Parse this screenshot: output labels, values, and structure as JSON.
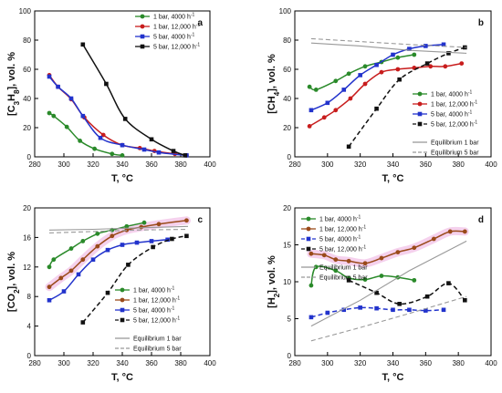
{
  "chart_data": [
    {
      "id": "a",
      "type": "scatter",
      "panel_label": "a",
      "xlabel": "T, °C",
      "ylabel_main": "[C",
      "ylabel_sub1": "3",
      "ylabel_mid": "H",
      "ylabel_sub2": "8",
      "ylabel_tail": "], vol. %",
      "xlim": [
        280,
        400
      ],
      "ylim": [
        0,
        100
      ],
      "xticks": [
        "280",
        "300",
        "320",
        "340",
        "360",
        "380",
        "400"
      ],
      "yticks": [
        "0",
        "20",
        "40",
        "60",
        "80",
        "100"
      ],
      "legend_position": "top-right",
      "series": [
        {
          "name": "1 bar, 4000 h",
          "sup": "-1",
          "color": "#2a8a2a",
          "marker": "circle",
          "style": "solid",
          "points": [
            [
              290,
              30
            ],
            [
              293,
              28
            ],
            [
              302,
              20.5
            ],
            [
              311,
              11
            ],
            [
              321,
              5.5
            ],
            [
              333,
              2
            ],
            [
              340,
              1
            ]
          ]
        },
        {
          "name": "1 bar, 12,000 h",
          "sup": "-1",
          "color": "#c81d1d",
          "marker": "circle",
          "style": "solid",
          "points": [
            [
              290,
              56
            ],
            [
              296,
              48
            ],
            [
              305,
              39.5
            ],
            [
              314,
              27
            ],
            [
              327,
              15
            ],
            [
              340,
              8
            ],
            [
              352,
              6
            ],
            [
              362,
              4
            ],
            [
              376,
              2
            ],
            [
              384,
              1
            ]
          ]
        },
        {
          "name": "5 bar, 4000 h",
          "sup": "-1",
          "color": "#2233cc",
          "marker": "square",
          "style": "solid",
          "points": [
            [
              290,
              55
            ],
            [
              296,
              48
            ],
            [
              305,
              40
            ],
            [
              313,
              28
            ],
            [
              325,
              13
            ],
            [
              340,
              8
            ],
            [
              355,
              5
            ],
            [
              365,
              3
            ],
            [
              384,
              1
            ]
          ]
        },
        {
          "name": "5 bar, 12,000 h",
          "sup": "-1",
          "color": "#111111",
          "marker": "square",
          "style": "solid",
          "points": [
            [
              313,
              77
            ],
            [
              329,
              50
            ],
            [
              342,
              26
            ],
            [
              360,
              12
            ],
            [
              375,
              4
            ],
            [
              383,
              1
            ]
          ]
        }
      ]
    },
    {
      "id": "b",
      "type": "scatter",
      "panel_label": "b",
      "xlabel": "T, °C",
      "ylabel_main": "[CH",
      "ylabel_sub1": "4",
      "ylabel_tail": "], vol. %",
      "xlim": [
        280,
        400
      ],
      "ylim": [
        0,
        100
      ],
      "xticks": [
        "280",
        "300",
        "320",
        "340",
        "360",
        "380",
        "400"
      ],
      "yticks": [
        "0",
        "20",
        "40",
        "60",
        "80",
        "100"
      ],
      "legend_position": "center-right",
      "series": [
        {
          "name": "1 bar, 4000 h",
          "sup": "-1",
          "color": "#2a8a2a",
          "marker": "circle",
          "style": "solid",
          "points": [
            [
              289,
              48
            ],
            [
              293,
              46
            ],
            [
              305,
              52
            ],
            [
              313,
              57
            ],
            [
              323,
              62
            ],
            [
              333,
              65
            ],
            [
              343,
              68
            ],
            [
              353,
              70
            ]
          ]
        },
        {
          "name": "1 bar, 12,000 h",
          "sup": "-1",
          "color": "#c81d1d",
          "marker": "circle",
          "style": "solid",
          "points": [
            [
              289,
              21
            ],
            [
              298,
              27
            ],
            [
              305,
              32
            ],
            [
              314,
              40
            ],
            [
              323,
              50
            ],
            [
              333,
              58
            ],
            [
              343,
              60
            ],
            [
              353,
              61
            ],
            [
              363,
              62
            ],
            [
              372,
              62
            ],
            [
              382,
              64
            ]
          ]
        },
        {
          "name": "5 bar, 4000 h",
          "sup": "-1",
          "color": "#2233cc",
          "marker": "square",
          "style": "solid",
          "points": [
            [
              290,
              32
            ],
            [
              300,
              37
            ],
            [
              310,
              46
            ],
            [
              320,
              56
            ],
            [
              330,
              63
            ],
            [
              340,
              70
            ],
            [
              350,
              74
            ],
            [
              360,
              76
            ],
            [
              371,
              77
            ]
          ]
        },
        {
          "name": "5 bar, 12,000 h",
          "sup": "-1",
          "color": "#111111",
          "marker": "square",
          "style": "dashed",
          "points": [
            [
              313,
              7
            ],
            [
              330,
              33
            ],
            [
              344,
              53
            ],
            [
              361,
              64
            ],
            [
              374,
              71
            ],
            [
              384,
              75
            ]
          ]
        },
        {
          "name": "Equilibrium 1 bar",
          "color": "#999999",
          "marker": "none",
          "style": "solid",
          "points": [
            [
              290,
              78
            ],
            [
              320,
              76
            ],
            [
              350,
              73
            ],
            [
              385,
              71
            ]
          ]
        },
        {
          "name": "Equilibrium 5 bar",
          "color": "#999999",
          "marker": "none",
          "style": "dashed",
          "points": [
            [
              290,
              81
            ],
            [
              320,
              79
            ],
            [
              350,
              77
            ],
            [
              385,
              75
            ]
          ]
        }
      ]
    },
    {
      "id": "c",
      "type": "scatter",
      "panel_label": "c",
      "xlabel": "T, °C",
      "ylabel_main": "[CO",
      "ylabel_sub1": "2",
      "ylabel_tail": "], vol. %",
      "xlim": [
        280,
        400
      ],
      "ylim": [
        0,
        20
      ],
      "xticks": [
        "280",
        "300",
        "320",
        "340",
        "360",
        "380",
        "400"
      ],
      "yticks": [
        "0",
        "4",
        "8",
        "12",
        "16",
        "20"
      ],
      "legend_position": "center-right",
      "series": [
        {
          "name": "1 bar, 4000 h",
          "sup": "-1",
          "color": "#2a8a2a",
          "marker": "circle",
          "style": "solid",
          "points": [
            [
              290,
              12
            ],
            [
              293,
              13
            ],
            [
              305,
              14.5
            ],
            [
              313,
              15.5
            ],
            [
              323,
              16.5
            ],
            [
              333,
              17
            ],
            [
              343,
              17.5
            ],
            [
              355,
              18
            ]
          ]
        },
        {
          "name": "1 bar, 12,000 h",
          "sup": "-1",
          "color": "#9a4a1a",
          "marker": "circle",
          "style": "solid",
          "points": [
            [
              290,
              9.3
            ],
            [
              298,
              10.5
            ],
            [
              305,
              11.5
            ],
            [
              313,
              13
            ],
            [
              323,
              14.8
            ],
            [
              333,
              16.2
            ],
            [
              343,
              17
            ],
            [
              353,
              17.4
            ],
            [
              365,
              17.8
            ],
            [
              384,
              18.3
            ]
          ]
        },
        {
          "name": "5 bar, 4000 h",
          "sup": "-1",
          "color": "#2233cc",
          "marker": "square",
          "style": "solid",
          "points": [
            [
              290,
              7.5
            ],
            [
              300,
              8.7
            ],
            [
              310,
              11
            ],
            [
              320,
              13
            ],
            [
              330,
              14.3
            ],
            [
              340,
              15
            ],
            [
              350,
              15.3
            ],
            [
              360,
              15.5
            ],
            [
              371,
              15.7
            ]
          ]
        },
        {
          "name": "5 bar, 12,000 h",
          "sup": "-1",
          "color": "#111111",
          "marker": "square",
          "style": "dashed",
          "points": [
            [
              313,
              4.5
            ],
            [
              330,
              8.5
            ],
            [
              344,
              12.3
            ],
            [
              361,
              14.7
            ],
            [
              374,
              15.8
            ],
            [
              384,
              16.2
            ]
          ]
        },
        {
          "name": "Equilibrium 1 bar",
          "color": "#999999",
          "marker": "none",
          "style": "solid",
          "points": [
            [
              290,
              17
            ],
            [
              320,
              17.1
            ],
            [
              350,
              17.3
            ],
            [
              385,
              17.5
            ]
          ]
        },
        {
          "name": "Equilibrium 5 bar",
          "color": "#999999",
          "marker": "none",
          "style": "dashed",
          "points": [
            [
              290,
              16.6
            ],
            [
              320,
              16.8
            ],
            [
              350,
              17
            ],
            [
              385,
              17.1
            ]
          ]
        }
      ]
    },
    {
      "id": "d",
      "type": "scatter",
      "panel_label": "d",
      "xlabel": "T, °C",
      "ylabel_main": "[H",
      "ylabel_sub1": "2",
      "ylabel_tail": "], vol. %",
      "xlim": [
        280,
        400
      ],
      "ylim": [
        0,
        20
      ],
      "xticks": [
        "280",
        "300",
        "320",
        "340",
        "360",
        "380",
        "400"
      ],
      "yticks": [
        "0",
        "5",
        "10",
        "15",
        "20"
      ],
      "legend_position": "top-left",
      "series": [
        {
          "name": "1 bar, 4000 h",
          "sup": "-1",
          "color": "#2a8a2a",
          "marker": "circle",
          "style": "solid",
          "points": [
            [
              290,
              9.5
            ],
            [
              293,
              12
            ],
            [
              305,
              11.5
            ],
            [
              313,
              10.5
            ],
            [
              323,
              10.3
            ],
            [
              333,
              10.8
            ],
            [
              343,
              10.6
            ],
            [
              353,
              10.2
            ]
          ]
        },
        {
          "name": "1 bar, 12,000 h",
          "sup": "-1",
          "color": "#9a4a1a",
          "marker": "circle",
          "style": "solid",
          "points": [
            [
              290,
              13.8
            ],
            [
              298,
              13.6
            ],
            [
              305,
              13
            ],
            [
              313,
              12.8
            ],
            [
              323,
              12.5
            ],
            [
              333,
              13.2
            ],
            [
              343,
              14
            ],
            [
              353,
              14.6
            ],
            [
              365,
              15.8
            ],
            [
              375,
              16.8
            ],
            [
              384,
              16.8
            ]
          ]
        },
        {
          "name": "5 bar, 4000 h",
          "sup": "-1",
          "color": "#2233cc",
          "marker": "square",
          "style": "dashed",
          "points": [
            [
              290,
              5.2
            ],
            [
              300,
              5.8
            ],
            [
              310,
              6.2
            ],
            [
              320,
              6.5
            ],
            [
              330,
              6.4
            ],
            [
              340,
              6.2
            ],
            [
              350,
              6.2
            ],
            [
              360,
              6.1
            ],
            [
              371,
              6.2
            ]
          ]
        },
        {
          "name": "5 bar, 12,000 h",
          "sup": "-1",
          "color": "#111111",
          "marker": "square",
          "style": "dashed",
          "points": [
            [
              313,
              10.2
            ],
            [
              330,
              8.5
            ],
            [
              344,
              7
            ],
            [
              361,
              8
            ],
            [
              374,
              9.8
            ],
            [
              384,
              7.5
            ]
          ]
        },
        {
          "name": "Equilibrium 1 bar",
          "color": "#999999",
          "marker": "none",
          "style": "solid",
          "points": [
            [
              290,
              4
            ],
            [
              320,
              7.5
            ],
            [
              350,
              11.5
            ],
            [
              385,
              15.5
            ]
          ]
        },
        {
          "name": "Equilibrium 5 bar",
          "color": "#999999",
          "marker": "none",
          "style": "dashed",
          "points": [
            [
              290,
              2
            ],
            [
              320,
              3.8
            ],
            [
              350,
              5.7
            ],
            [
              385,
              8
            ]
          ]
        }
      ]
    }
  ]
}
